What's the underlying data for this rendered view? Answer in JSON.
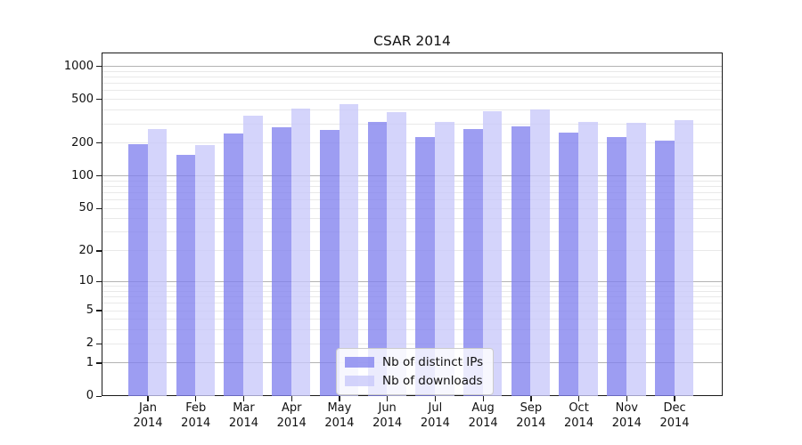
{
  "figure": {
    "background": "#ffffff"
  },
  "chart_data": {
    "type": "bar",
    "title": "CSAR 2014",
    "categories": [
      "Jan",
      "Feb",
      "Mar",
      "Apr",
      "May",
      "Jun",
      "Jul",
      "Aug",
      "Sep",
      "Oct",
      "Nov",
      "Dec"
    ],
    "x_year_line": "2014",
    "series": [
      {
        "name": "Nb of distinct IPs",
        "color": "rgba(130,130,238,0.78)",
        "values": [
          195,
          155,
          240,
          275,
          260,
          310,
          225,
          265,
          280,
          245,
          225,
          210
        ]
      },
      {
        "name": "Nb of downloads",
        "color": "rgba(200,200,250,0.78)",
        "values": [
          265,
          190,
          355,
          405,
          445,
          380,
          310,
          385,
          400,
          310,
          305,
          320
        ]
      }
    ],
    "yticks": [
      0,
      1,
      2,
      5,
      10,
      20,
      50,
      100,
      200,
      500,
      1000
    ],
    "ytick_labels": [
      "0",
      "1",
      "2",
      "5",
      "10",
      "20",
      "50",
      "100",
      "200",
      "500",
      "1000"
    ],
    "ylim": [
      0,
      1000
    ],
    "yscale": "log1p",
    "grid": "major+minor horizontal",
    "legend_position": "lower center",
    "grid_major_color": "#b3b3b3",
    "grid_minor_color": "#e9e9e9",
    "axis_color": "#1a1a1a"
  }
}
